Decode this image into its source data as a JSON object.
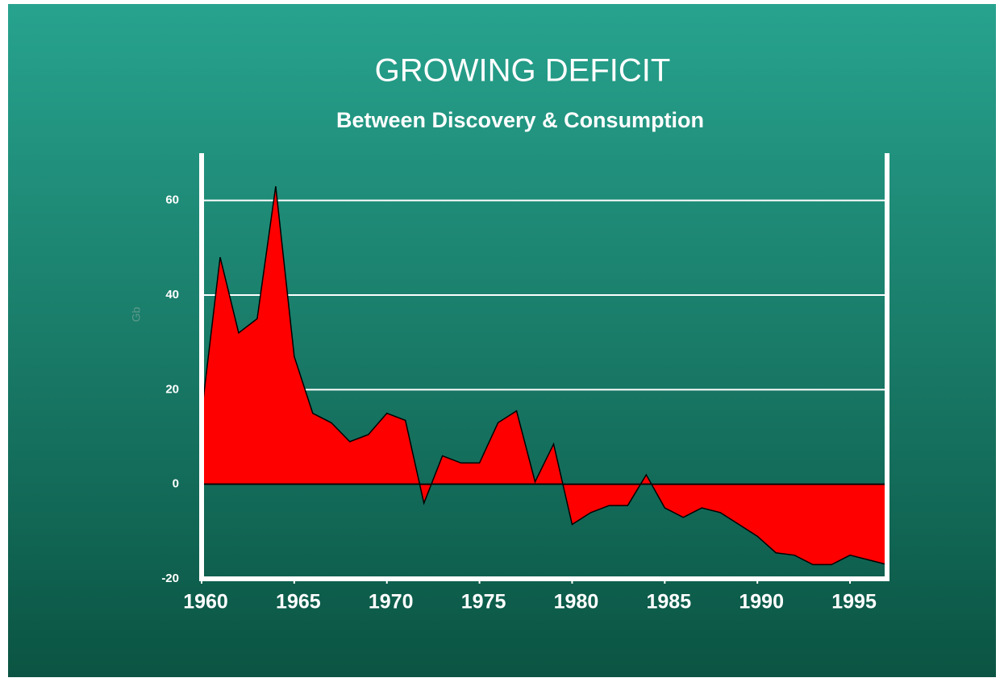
{
  "chart_data": {
    "type": "area",
    "title": "GROWING DEFICIT",
    "subtitle": "Between Discovery & Consumption",
    "y_label": "Gb",
    "x": [
      1960,
      1961,
      1962,
      1963,
      1964,
      1965,
      1966,
      1967,
      1968,
      1969,
      1970,
      1971,
      1972,
      1973,
      1974,
      1975,
      1976,
      1977,
      1978,
      1979,
      1980,
      1981,
      1982,
      1983,
      1984,
      1985,
      1986,
      1987,
      1988,
      1989,
      1990,
      1991,
      1992,
      1993,
      1994,
      1995,
      1996,
      1997
    ],
    "values": [
      15,
      48,
      32,
      35,
      63,
      27,
      15,
      13,
      9,
      10.5,
      15,
      13.5,
      -4,
      6,
      4.5,
      4.5,
      13,
      15.5,
      0.5,
      8.5,
      -8.5,
      -6,
      -4.5,
      -4.5,
      2,
      -5,
      -7,
      -5,
      -6,
      -8.5,
      -11,
      -14.5,
      -15,
      -17,
      -17,
      -15,
      -16,
      -17
    ],
    "color": "#ff0000",
    "xlim": [
      1960,
      1997
    ],
    "xticks": [
      1960,
      1965,
      1970,
      1975,
      1980,
      1985,
      1990,
      1995
    ],
    "ylim": [
      -20,
      70
    ],
    "yticks": [
      -20,
      0,
      20,
      40,
      60
    ],
    "grid": true
  }
}
